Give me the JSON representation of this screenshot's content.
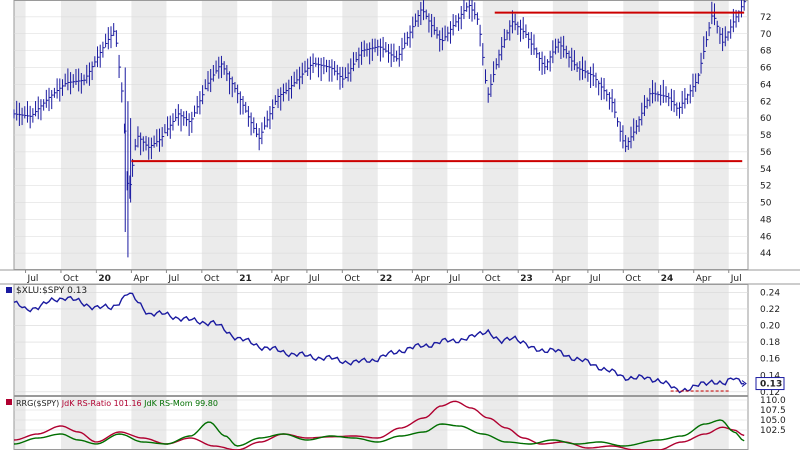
{
  "chart_data": [
    {
      "type": "ohlc",
      "title": "",
      "ylim": [
        42,
        74
      ],
      "yticks": [
        44,
        46,
        48,
        50,
        52,
        54,
        56,
        58,
        60,
        62,
        64,
        66,
        68,
        70,
        72
      ],
      "x_date_range": [
        "2019-06-01",
        "2024-08-20"
      ],
      "x_ticks": [
        {
          "date": "2019-07-01",
          "label": "Jul",
          "bold": false
        },
        {
          "date": "2019-10-01",
          "label": "Oct",
          "bold": false
        },
        {
          "date": "2020-01-01",
          "label": "20",
          "bold": true
        },
        {
          "date": "2020-04-01",
          "label": "Apr",
          "bold": false
        },
        {
          "date": "2020-07-01",
          "label": "Jul",
          "bold": false
        },
        {
          "date": "2020-10-01",
          "label": "Oct",
          "bold": false
        },
        {
          "date": "2021-01-01",
          "label": "21",
          "bold": true
        },
        {
          "date": "2021-04-01",
          "label": "Apr",
          "bold": false
        },
        {
          "date": "2021-07-01",
          "label": "Jul",
          "bold": false
        },
        {
          "date": "2021-10-01",
          "label": "Oct",
          "bold": false
        },
        {
          "date": "2022-01-01",
          "label": "22",
          "bold": true
        },
        {
          "date": "2022-04-01",
          "label": "Apr",
          "bold": false
        },
        {
          "date": "2022-07-01",
          "label": "Jul",
          "bold": false
        },
        {
          "date": "2022-10-01",
          "label": "Oct",
          "bold": false
        },
        {
          "date": "2023-01-01",
          "label": "23",
          "bold": true
        },
        {
          "date": "2023-04-01",
          "label": "Apr",
          "bold": false
        },
        {
          "date": "2023-07-01",
          "label": "Jul",
          "bold": false
        },
        {
          "date": "2023-10-01",
          "label": "Oct",
          "bold": false
        },
        {
          "date": "2024-01-01",
          "label": "24",
          "bold": true
        },
        {
          "date": "2024-04-01",
          "label": "Apr",
          "bold": false
        },
        {
          "date": "2024-07-01",
          "label": "Jul",
          "bold": false
        }
      ],
      "price_path": [
        [
          "2019-06-01",
          60.5
        ],
        [
          "2019-07-15",
          60.2
        ],
        [
          "2019-09-01",
          62.5
        ],
        [
          "2019-10-15",
          64.2
        ],
        [
          "2019-12-01",
          64.5
        ],
        [
          "2020-01-20",
          68.5
        ],
        [
          "2020-02-18",
          70.5
        ],
        [
          "2020-03-10",
          62
        ],
        [
          "2020-03-23",
          50.5
        ],
        [
          "2020-04-15",
          58
        ],
        [
          "2020-05-15",
          56.5
        ],
        [
          "2020-06-15",
          57.5
        ],
        [
          "2020-08-01",
          60.5
        ],
        [
          "2020-09-01",
          59.5
        ],
        [
          "2020-10-15",
          64
        ],
        [
          "2020-11-20",
          66.5
        ],
        [
          "2021-01-01",
          63
        ],
        [
          "2021-02-26",
          57.5
        ],
        [
          "2021-04-15",
          62.5
        ],
        [
          "2021-05-15",
          63.5
        ],
        [
          "2021-07-15",
          66.5
        ],
        [
          "2021-09-01",
          66
        ],
        [
          "2021-10-05",
          64.5
        ],
        [
          "2021-11-20",
          68
        ],
        [
          "2022-01-05",
          68.5
        ],
        [
          "2022-02-20",
          67
        ],
        [
          "2022-04-25",
          73
        ],
        [
          "2022-06-15",
          69
        ],
        [
          "2022-08-25",
          73.5
        ],
        [
          "2022-09-20",
          71.5
        ],
        [
          "2022-10-13",
          62.5
        ],
        [
          "2022-11-15",
          68
        ],
        [
          "2022-12-15",
          71.5
        ],
        [
          "2023-01-20",
          70
        ],
        [
          "2023-03-10",
          66
        ],
        [
          "2023-04-15",
          69
        ],
        [
          "2023-06-01",
          66
        ],
        [
          "2023-07-15",
          65
        ],
        [
          "2023-09-01",
          62
        ],
        [
          "2023-10-05",
          56.5
        ],
        [
          "2023-10-30",
          58.5
        ],
        [
          "2023-12-10",
          63
        ],
        [
          "2024-01-25",
          62.5
        ],
        [
          "2024-02-20",
          61
        ],
        [
          "2024-04-10",
          64.5
        ],
        [
          "2024-05-20",
          72.5
        ],
        [
          "2024-06-15",
          69
        ],
        [
          "2024-08-10",
          73.8
        ]
      ],
      "horizontal_lines": [
        {
          "value": 54.9,
          "from": "2020-04-01",
          "to": "2024-08-05",
          "color": "#cc0000",
          "dashed": false
        },
        {
          "value": 72.5,
          "from": "2022-11-01",
          "to": "2024-08-10",
          "color": "#cc0000",
          "dashed": false
        }
      ],
      "label_points": [],
      "line_color": "#1a1aa0",
      "panel_bg": "#ffffff",
      "shaded_quarters_bg": "#ebebeb"
    },
    {
      "type": "line",
      "series": [
        {
          "name": "$XLU:$SPY",
          "label_text": "$XLU:$SPY 0.13",
          "last_value": 0.13,
          "color": "#1a1aa0"
        }
      ],
      "ylim": [
        0.115,
        0.25
      ],
      "yticks": [
        0.12,
        0.14,
        0.16,
        0.18,
        0.2,
        0.22,
        0.24
      ],
      "last_value_box": "0.13",
      "path": [
        [
          "2019-06-01",
          0.228
        ],
        [
          "2019-07-01",
          0.218
        ],
        [
          "2019-09-01",
          0.228
        ],
        [
          "2019-10-15",
          0.235
        ],
        [
          "2019-12-01",
          0.225
        ],
        [
          "2020-02-10",
          0.22
        ],
        [
          "2020-03-23",
          0.24
        ],
        [
          "2020-05-15",
          0.215
        ],
        [
          "2020-07-01",
          0.213
        ],
        [
          "2020-09-01",
          0.206
        ],
        [
          "2020-11-01",
          0.203
        ],
        [
          "2021-01-01",
          0.185
        ],
        [
          "2021-03-01",
          0.175
        ],
        [
          "2021-05-01",
          0.168
        ],
        [
          "2021-07-01",
          0.163
        ],
        [
          "2021-09-01",
          0.16
        ],
        [
          "2021-11-01",
          0.155
        ],
        [
          "2022-01-01",
          0.16
        ],
        [
          "2022-03-01",
          0.17
        ],
        [
          "2022-06-15",
          0.18
        ],
        [
          "2022-09-01",
          0.185
        ],
        [
          "2022-10-13",
          0.195
        ],
        [
          "2022-11-15",
          0.178
        ],
        [
          "2022-12-20",
          0.188
        ],
        [
          "2023-02-01",
          0.172
        ],
        [
          "2023-04-01",
          0.17
        ],
        [
          "2023-06-01",
          0.16
        ],
        [
          "2023-08-01",
          0.15
        ],
        [
          "2023-10-01",
          0.138
        ],
        [
          "2024-01-01",
          0.135
        ],
        [
          "2024-02-15",
          0.122
        ],
        [
          "2024-04-01",
          0.125
        ],
        [
          "2024-05-20",
          0.134
        ],
        [
          "2024-06-20",
          0.128
        ],
        [
          "2024-07-15",
          0.138
        ],
        [
          "2024-08-10",
          0.132
        ]
      ],
      "support_line": {
        "value": 0.121,
        "from": "2024-02-01",
        "to": "2024-07-01",
        "color": "#cc0000",
        "dashed": true
      }
    },
    {
      "type": "line",
      "legend_text": "RRG($SPY) JdK RS-Ratio 101.16 JdK RS-Mom 99.80",
      "legend_parts": [
        {
          "text": "RRG($SPY)",
          "color": "#222222"
        },
        {
          "text": " JdK RS-Ratio 101.16",
          "color": "#b00030"
        },
        {
          "text": " JdK RS-Mom 99.80",
          "color": "#006e00"
        }
      ],
      "series": [
        {
          "name": "JdK RS-Ratio",
          "last_value": 101.16,
          "color": "#b00030",
          "path": [
            [
              "2019-06-01",
              100
            ],
            [
              "2019-08-01",
              101.5
            ],
            [
              "2019-10-01",
              103.5
            ],
            [
              "2019-11-15",
              102
            ],
            [
              "2020-01-01",
              99.5
            ],
            [
              "2020-03-01",
              102
            ],
            [
              "2020-05-01",
              100.5
            ],
            [
              "2020-07-01",
              99
            ],
            [
              "2020-09-01",
              100.5
            ],
            [
              "2020-11-01",
              98.5
            ],
            [
              "2021-01-01",
              97.5
            ],
            [
              "2021-03-01",
              99.5
            ],
            [
              "2021-05-01",
              101.5
            ],
            [
              "2021-07-01",
              100.5
            ],
            [
              "2021-09-01",
              100.8
            ],
            [
              "2021-11-01",
              101
            ],
            [
              "2022-01-01",
              100.5
            ],
            [
              "2022-03-01",
              103
            ],
            [
              "2022-05-01",
              105.5
            ],
            [
              "2022-06-15",
              108.5
            ],
            [
              "2022-07-20",
              109.7
            ],
            [
              "2022-09-01",
              108
            ],
            [
              "2022-10-15",
              105.5
            ],
            [
              "2022-12-01",
              103
            ],
            [
              "2023-01-15",
              100.5
            ],
            [
              "2023-03-01",
              99
            ],
            [
              "2023-05-01",
              99.5
            ],
            [
              "2023-07-01",
              98
            ],
            [
              "2023-09-01",
              98.5
            ],
            [
              "2023-11-01",
              97.5
            ],
            [
              "2024-01-01",
              97.5
            ],
            [
              "2024-03-01",
              99.5
            ],
            [
              "2024-05-01",
              101.5
            ],
            [
              "2024-06-15",
              103.2
            ],
            [
              "2024-07-15",
              102.5
            ],
            [
              "2024-08-10",
              101.16
            ]
          ]
        },
        {
          "name": "JdK RS-Mom",
          "last_value": 99.8,
          "color": "#006e00",
          "path": [
            [
              "2019-06-01",
              99
            ],
            [
              "2019-08-01",
              100.5
            ],
            [
              "2019-10-01",
              101.5
            ],
            [
              "2019-11-15",
              100
            ],
            [
              "2020-01-01",
              99
            ],
            [
              "2020-03-01",
              101.5
            ],
            [
              "2020-05-01",
              99.5
            ],
            [
              "2020-07-01",
              99
            ],
            [
              "2020-09-01",
              101
            ],
            [
              "2020-10-20",
              104.5
            ],
            [
              "2020-12-01",
              101
            ],
            [
              "2021-01-01",
              98.5
            ],
            [
              "2021-03-01",
              100.5
            ],
            [
              "2021-05-01",
              101.5
            ],
            [
              "2021-07-01",
              100
            ],
            [
              "2021-09-01",
              101
            ],
            [
              "2021-11-01",
              100.5
            ],
            [
              "2022-01-01",
              99.5
            ],
            [
              "2022-03-01",
              101
            ],
            [
              "2022-05-01",
              102
            ],
            [
              "2022-06-15",
              104
            ],
            [
              "2022-08-01",
              103.5
            ],
            [
              "2022-10-01",
              101.5
            ],
            [
              "2022-12-01",
              99.5
            ],
            [
              "2023-02-01",
              99
            ],
            [
              "2023-04-01",
              100
            ],
            [
              "2023-06-01",
              99
            ],
            [
              "2023-08-01",
              99.5
            ],
            [
              "2023-10-01",
              98.5
            ],
            [
              "2024-01-01",
              100
            ],
            [
              "2024-03-01",
              101
            ],
            [
              "2024-05-01",
              104
            ],
            [
              "2024-06-10",
              105
            ],
            [
              "2024-07-15",
              102
            ],
            [
              "2024-08-10",
              99.8
            ]
          ]
        }
      ],
      "ylim": [
        97.5,
        111
      ],
      "yticks": [
        102.5,
        105.0,
        107.5,
        110.0
      ]
    }
  ]
}
